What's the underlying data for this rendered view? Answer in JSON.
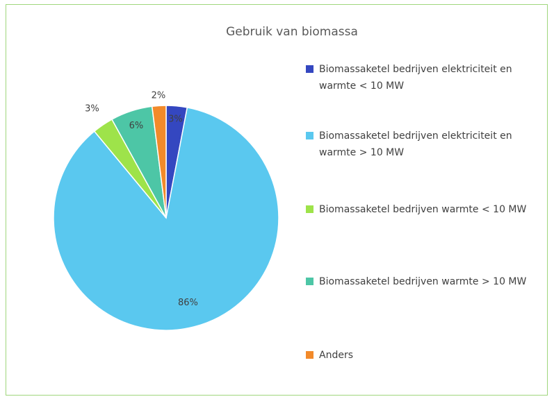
{
  "chart_data": {
    "type": "pie",
    "title": "Gebruik van biomassa",
    "categories": [
      "Biomassaketel bedrijven elektriciteit en warmte < 10 MW",
      "Biomassaketel bedrijven elektriciteit en warmte > 10 MW",
      "Biomassaketel bedrijven warmte < 10 MW",
      "Biomassaketel bedrijven warmte > 10 MW",
      "Anders"
    ],
    "values": [
      3,
      86,
      3,
      6,
      2
    ],
    "value_labels": [
      "3%",
      "86%",
      "3%",
      "6%",
      "2%"
    ],
    "colors": [
      "#3447c0",
      "#5ac8ef",
      "#9ee34a",
      "#4dc6a6",
      "#f28a2a"
    ],
    "legend": "right"
  }
}
